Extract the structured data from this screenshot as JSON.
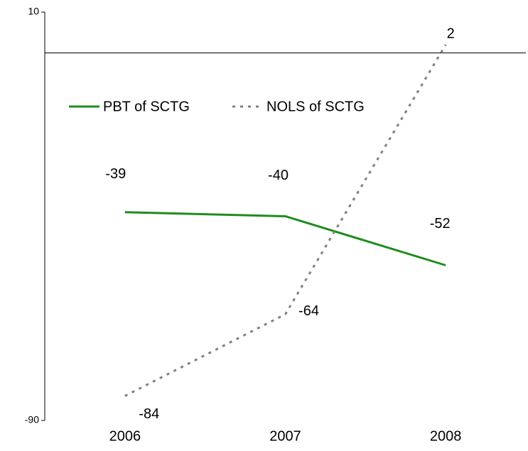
{
  "chart_data": {
    "type": "line",
    "categories": [
      "2006",
      "2007",
      "2008"
    ],
    "series": [
      {
        "name": "PBT of SCTG",
        "color": "#1e8c1e",
        "dash": "solid",
        "values": [
          -39,
          -40,
          -52
        ]
      },
      {
        "name": "NOLS of SCTG",
        "color": "#808080",
        "dash": "dotted",
        "values": [
          -84,
          -64,
          2
        ]
      }
    ],
    "ylim": [
      -90,
      10
    ],
    "yticks": [
      -90,
      10
    ],
    "grid": false,
    "legend": "upper left"
  }
}
